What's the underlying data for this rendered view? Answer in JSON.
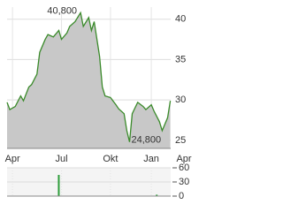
{
  "chart_data": [
    {
      "type": "area",
      "x": [
        0,
        1,
        3,
        5,
        6,
        8,
        9,
        11,
        12,
        14,
        15,
        17,
        19,
        20,
        22,
        23,
        25,
        27,
        28,
        30,
        31,
        32,
        34,
        35,
        36,
        38,
        40,
        41,
        43,
        44,
        45,
        46,
        48,
        50,
        51,
        53,
        54,
        56,
        57,
        59,
        60
      ],
      "values": [
        29.7,
        28.8,
        29.2,
        30.5,
        29.9,
        31.6,
        31.9,
        33.2,
        35.9,
        37.5,
        38.1,
        37.8,
        38.6,
        37.5,
        38.3,
        39.1,
        39.7,
        40.8,
        39.1,
        40.2,
        38.6,
        39.7,
        35.4,
        31.6,
        30.5,
        30.3,
        29.4,
        28.9,
        28.3,
        26.2,
        24.8,
        28.3,
        29.7,
        29.2,
        28.8,
        29.4,
        28.6,
        27.3,
        26.2,
        27.8,
        29.9
      ],
      "color": "#3a8a2a",
      "fill_color": "#c8c8c8",
      "xlim": [
        0,
        65
      ],
      "ylim": [
        24,
        41.5
      ],
      "xticks": [
        {
          "value": 2,
          "label": "Apr"
        },
        {
          "value": 20,
          "label": "Jul"
        },
        {
          "value": 38,
          "label": "Okt"
        },
        {
          "value": 53,
          "label": "Jan"
        },
        {
          "value": 65,
          "label": "Apr"
        }
      ],
      "yticks": [
        25,
        30,
        35,
        40
      ],
      "grid": true,
      "high_label": "40,800",
      "low_label": "24,800"
    },
    {
      "type": "bar",
      "x": [
        19,
        55
      ],
      "values": [
        45,
        3
      ],
      "color": "#2e9d3a",
      "xlim": [
        0,
        65
      ],
      "ylim": [
        0,
        60
      ],
      "yticks": [
        0,
        30,
        60
      ],
      "grid": true
    }
  ]
}
